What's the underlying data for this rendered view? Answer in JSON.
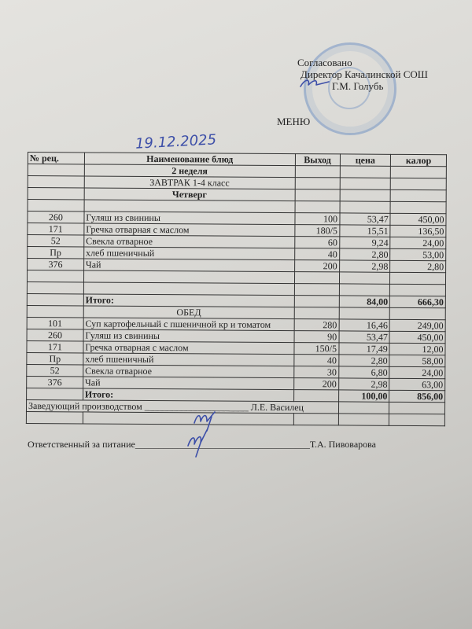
{
  "approval": {
    "line1": "Согласовано",
    "line2": "Директор Качалинской СОШ",
    "line3": "Г.М. Голубь"
  },
  "title": "МЕНЮ",
  "date_handwritten": "19.12.2025",
  "table": {
    "headers": [
      "№ рец.",
      "Наименование блюд",
      "Выход",
      "цена",
      "калор"
    ],
    "rows": [
      {
        "type": "section",
        "name": "2 неделя",
        "bold": true
      },
      {
        "type": "section",
        "name": "ЗАВТРАК 1-4 класс",
        "bold": false
      },
      {
        "type": "section",
        "name": "Четверг",
        "bold": true
      },
      {
        "type": "empty"
      },
      {
        "type": "item",
        "rec": "260",
        "name": "Гуляш из  свинины",
        "out": "100",
        "price": "53,47",
        "kcal": "450,00"
      },
      {
        "type": "item",
        "rec": "171",
        "name": "Гречка отварная с маслом",
        "out": "180/5",
        "price": "15,51",
        "kcal": "136,50"
      },
      {
        "type": "item",
        "rec": "52",
        "name": "Свекла отварное",
        "out": "60",
        "price": "9,24",
        "kcal": "24,00"
      },
      {
        "type": "item",
        "rec": "Пр",
        "name": "хлеб пшеничный",
        "out": "40",
        "price": "2,80",
        "kcal": "53,00"
      },
      {
        "type": "item",
        "rec": "376",
        "name": "Чай",
        "out": "200",
        "price": "2,98",
        "kcal": "2,80"
      },
      {
        "type": "empty"
      },
      {
        "type": "empty"
      },
      {
        "type": "total",
        "name": "Итого:",
        "price": "84,00",
        "kcal": "666,30"
      },
      {
        "type": "section",
        "name": "ОБЕД",
        "bold": false
      },
      {
        "type": "item",
        "rec": "101",
        "name": "Суп картофельный с пшеничной кр  и томатом",
        "out": "280",
        "price": "16,46",
        "kcal": "249,00"
      },
      {
        "type": "item",
        "rec": "260",
        "name": "Гуляш из свинины",
        "out": "90",
        "price": "53,47",
        "kcal": "450,00"
      },
      {
        "type": "item",
        "rec": "171",
        "name": "Гречка отварная с маслом",
        "out": "150/5",
        "price": "17,49",
        "kcal": "12,00"
      },
      {
        "type": "item",
        "rec": "Пр",
        "name": "хлеб пшеничный",
        "out": "40",
        "price": "2,80",
        "kcal": "58,00"
      },
      {
        "type": "item",
        "rec": "52",
        "name": "Свекла отварное",
        "out": "30",
        "price": "6,80",
        "kcal": "24,00"
      },
      {
        "type": "item",
        "rec": "376",
        "name": "Чай",
        "out": "200",
        "price": "2,98",
        "kcal": "63,00"
      },
      {
        "type": "total",
        "name": "Итого:",
        "price": "100,00",
        "kcal": "856,00"
      },
      {
        "type": "signature",
        "name": "Заведующий производством ______________________ Л.Е. Василец"
      },
      {
        "type": "empty"
      }
    ]
  },
  "footer": {
    "responsible": "Ответственный за питание_____________________________________Т.А. Пивоварова"
  }
}
